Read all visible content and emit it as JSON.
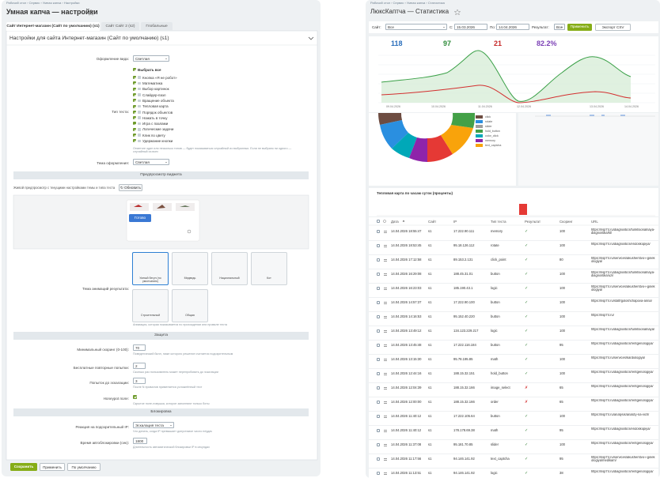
{
  "settings": {
    "breadcrumb": "Рабочий стол  ›  Сервис  ›  Умная капча  ›  Настройки",
    "title": "Умная капча — настройки",
    "tabs": [
      "Сайт Интернет-магазин (Сайт по умолчанию) (s1)",
      "Сайт Сайт 2 (s2)",
      "Глобальные"
    ],
    "panel_title": "Настройки для сайта Интернет-магазин (Сайт по умолчанию) (s1)",
    "view_label": "Оформление вида:",
    "view_value": "Светлая",
    "test_type_label": "Тип теста:",
    "select_all": "Выбрать все",
    "test_types": [
      "Кнопка «Я не робот»",
      "Математика",
      "Выбор картинок",
      "Слайдер-пазл",
      "Вращение объекта",
      "Тепловая карта",
      "Порядок объектов",
      "Нажать в точку",
      "Игра с пазлами",
      "Логические задачи",
      "Клик по цвету",
      "Удержание кнопки"
    ],
    "test_type_hint": "Отметьте один или несколько типов — будет показываться случайный из выбранных. Если не выбрано ни одного — случайный из всех",
    "theme_label": "Тема оформления:",
    "theme_value": "Светлая",
    "preview_section": "Предпросмотр виджета",
    "preview_text": "Живой предпросмотр с текущими настройками темы и типа теста",
    "refresh_button": "↻ Обновить",
    "done_button": "Готово",
    "animation_label": "Тема анимаций результата:",
    "mascots": [
      "Умный бегун (по умолчанию)",
      "Медведь",
      "Национальный",
      "Кот",
      "Строительный",
      "Общая"
    ],
    "animation_hint": "Анимация, которая показывается по прохождении или провале теста",
    "protection_section": "Защита",
    "protection_fields": [
      {
        "label": "Минимальный скоринг (0-100):",
        "value": "70",
        "hint": "Поведенческий балл, ниже которого решение считается подозрительным"
      },
      {
        "label": "Бесплатные повторные попытки:",
        "value": "2",
        "hint": "Сколько раз пользователь может перепробовать до эскалации"
      },
      {
        "label": "Попыток до эскалации:",
        "value": "3",
        "hint": "После N провалов применяется усложнённый тест"
      },
      {
        "label": "Honeypot поле:",
        "hint": "Скрытое поле-ловушка, которое заполняют только боты"
      }
    ],
    "block_section": "Блокировка",
    "block_fields": [
      {
        "label": "Реакция на подозрительный IP:",
        "value": "Эскалация теста",
        "hint": "Что делать, когда IP превышает допустимое число неудач"
      },
      {
        "label": "Время автоблокировки (сек):",
        "value": "1800",
        "hint": "Длительность автоматической блокировки IP в секундах"
      }
    ],
    "buttons": [
      "Сохранить",
      "Применить",
      "По умолчанию"
    ]
  },
  "stats": {
    "breadcrumb": "Рабочий стол  ›  Сервис  ›  Умная капча  ›  Статистика",
    "title": "ЛюксКаптча — Статистика",
    "filters": {
      "site_label": "Сайт:",
      "site_value": "Все",
      "from_label": "С:",
      "from_value": "15.03.2026",
      "to_label": "По:",
      "to_value": "14.04.2026",
      "result_label": "Результат:",
      "result_value": "Все",
      "apply": "Применить",
      "export": "Экспорт CSV"
    },
    "cards": [
      "118",
      "97",
      "21",
      "82.2%"
    ],
    "chart_dates": [
      "09.04.2026",
      "10.04.2026",
      "11.04.2026",
      "12.04.2026",
      "13.04.2026",
      "14.04.2026"
    ],
    "legend": [
      "click",
      "rotate",
      "slider",
      "hold_button",
      "color_click",
      "memory",
      "text_captcha"
    ],
    "heatmap_title": "Тепловая карта по часам суток (проценты)",
    "columns": [
      "Дата",
      "Сайт",
      "IP",
      "Тип теста",
      "Результат",
      "Скоринг",
      "URL"
    ],
    "rows": [
      [
        "14.04.2026 18:55:47",
        "s1",
        "17.222.90.111",
        "memory",
        "✓",
        "100",
        "https://lisp74.ru/diagnostics/funktsionalnaya-diagnostika/kt/"
      ],
      [
        "14.04.2026 18:53:45",
        "s1",
        "95.18.126.112",
        "rotate",
        "✓",
        "100",
        "https://lisp74.ru/diagnostics/endoskopiya/"
      ],
      [
        "14.04.2026 17:12:58",
        "s1",
        "89.153.2.131",
        "click_point",
        "✓",
        "80",
        "https://lisp74.ru/services/akusherstvo-i-ginekologiya/"
      ],
      [
        "14.04.2026 16:29:08",
        "s1",
        "188.45.31.01",
        "button",
        "✓",
        "100",
        "https://lisp74.ru/diagnostics/funktsionalnaya-diagnostika/uzi/"
      ],
      [
        "14.04.2026 16:23:03",
        "s1",
        "185.190.43.1",
        "logic",
        "✓",
        "100",
        "https://lisp74.ru/services/akusherstvo-i-ginekologiya/"
      ],
      [
        "14.04.2026 14:57:37",
        "s1",
        "17.222.90.100",
        "button",
        "✓",
        "100",
        "https://lisp74.ru/staff/goloshchapova-anna/"
      ],
      [
        "14.04.2026 14:16:53",
        "s1",
        "95.152.40.220",
        "button",
        "✓",
        "100",
        "https://lisp74.ru/"
      ],
      [
        "14.04.2026 13:49:12",
        "s1",
        "134.123.229.217",
        "logic",
        "✓",
        "100",
        "https://lisp74.ru/diagnostics/funktsionalnaya/"
      ],
      [
        "14.04.2026 13:45:48",
        "s1",
        "17.222.116.184",
        "button",
        "✓",
        "95",
        "https://lisp74.ru/diagnostics/rentgenologiya/"
      ],
      [
        "14.04.2026 13:15:30",
        "s1",
        "95.78.195.85",
        "math",
        "✓",
        "100",
        "https://lisp74.ru/services/kardiologiya/"
      ],
      [
        "14.04.2026 12:44:16",
        "s1",
        "188.15.32.151",
        "hold_button",
        "✓",
        "100",
        "https://lisp74.ru/diagnostics/rentgenologiya/"
      ],
      [
        "14.04.2026 12:04:39",
        "s1",
        "188.15.32.166",
        "image_select",
        "✗",
        "65",
        "https://lisp74.ru/diagnostics/rentgenologiya/"
      ],
      [
        "14.04.2026 12:00:00",
        "s1",
        "188.15.32.166",
        "order",
        "✗",
        "65",
        "https://lisp74.ru/diagnostics/rentgenologiya/"
      ],
      [
        "14.04.2026 11:40:12",
        "s1",
        "17.222.105.64",
        "button",
        "✓",
        "100",
        "https://lisp74.ru/analysis/analizy-na-vich/"
      ],
      [
        "14.04.2026 11:40:12",
        "s1",
        "178.178.69.38",
        "math",
        "✓",
        "95",
        "https://lisp74.ru/diagnostics/endoskopiya/"
      ],
      [
        "14.04.2026 11:37:08",
        "s1",
        "95.181.70.85",
        "slider",
        "✓",
        "100",
        "https://lisp74.ru/diagnostics/rentgenologiya/"
      ],
      [
        "14.04.2026 11:17:56",
        "s1",
        "94.146.141.92",
        "text_captcha",
        "✓",
        "95",
        "https://lisp74.ru/services/akusherstvo-i-ginekologiya/medikam/"
      ],
      [
        "14.04.2026 11:13:51",
        "s1",
        "94.146.141.92",
        "logic",
        "✓",
        "38",
        "https://lisp74.ru/diagnostics/rentgenologiya/"
      ]
    ]
  }
}
